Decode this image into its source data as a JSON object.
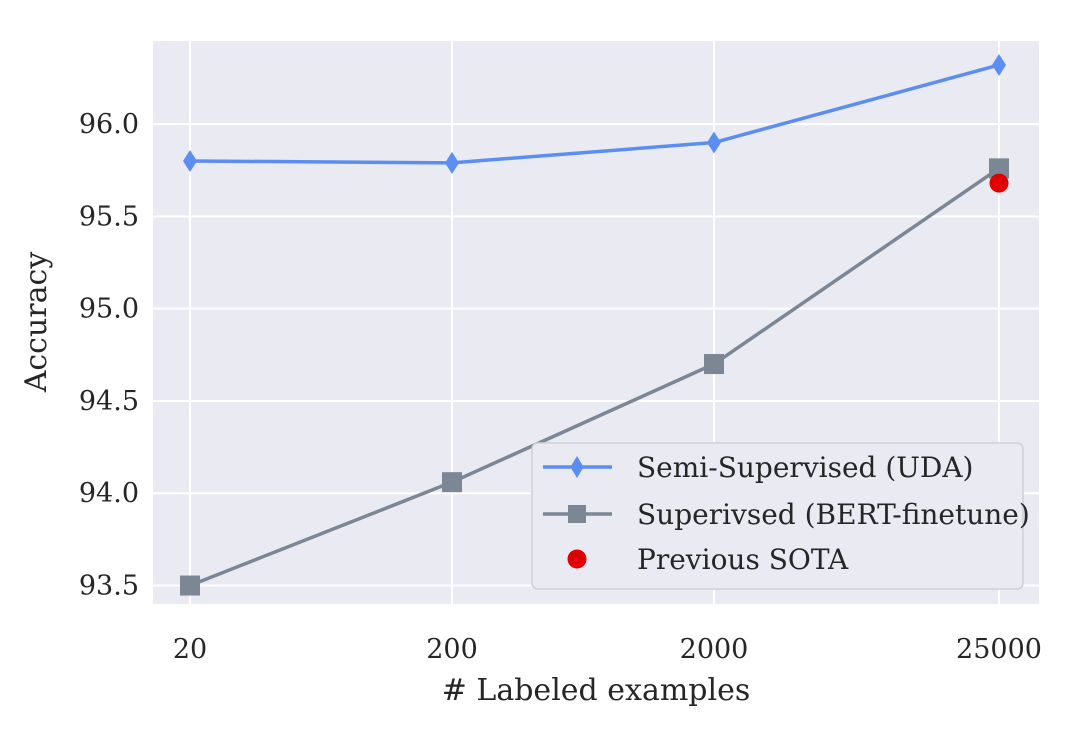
{
  "chart_data": {
    "type": "line",
    "x_scale": "categorical",
    "categories": [
      "20",
      "200",
      "2000",
      "25000"
    ],
    "xlabel": "# Labeled examples",
    "ylabel": "Accuracy",
    "ylim": [
      93.4,
      96.45
    ],
    "yticks": [
      "93.5",
      "94.0",
      "94.5",
      "95.0",
      "95.5",
      "96.0"
    ],
    "grid": true,
    "legend_position": "lower-right",
    "background_color": "#eaeaf2",
    "series": [
      {
        "name": "Semi-Supervised (UDA)",
        "values": [
          95.8,
          95.79,
          95.9,
          96.32
        ],
        "color": "#5b8ef0",
        "marker": "diamond"
      },
      {
        "name": "Superivsed (BERT-finetune)",
        "values": [
          93.5,
          94.06,
          94.7,
          95.76
        ],
        "color": "#7b8794",
        "marker": "square"
      }
    ],
    "points": [
      {
        "name": "Previous SOTA",
        "category": "25000",
        "value": 95.68,
        "color": "#e00000",
        "marker": "circle"
      }
    ]
  }
}
